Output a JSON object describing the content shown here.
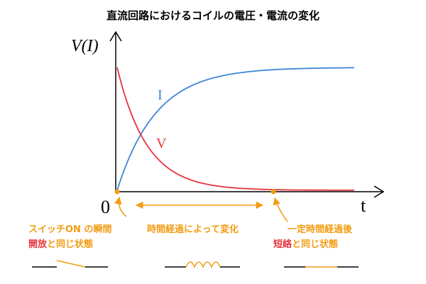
{
  "title": "直流回路におけるコイルの電圧・電流の変化",
  "axes": {
    "y_label": "V(I)",
    "x_label": "t",
    "origin": "0"
  },
  "curves": {
    "current": "I",
    "voltage": "V"
  },
  "annotations": {
    "start": {
      "line1": "スイッチON の瞬間",
      "highlight": "開放",
      "rest": "と同じ状態"
    },
    "middle": {
      "line1": "時間経過によって変化"
    },
    "end": {
      "line1": "一定時間経過後",
      "highlight": "短絡",
      "rest": "と同じ状態"
    }
  }
}
